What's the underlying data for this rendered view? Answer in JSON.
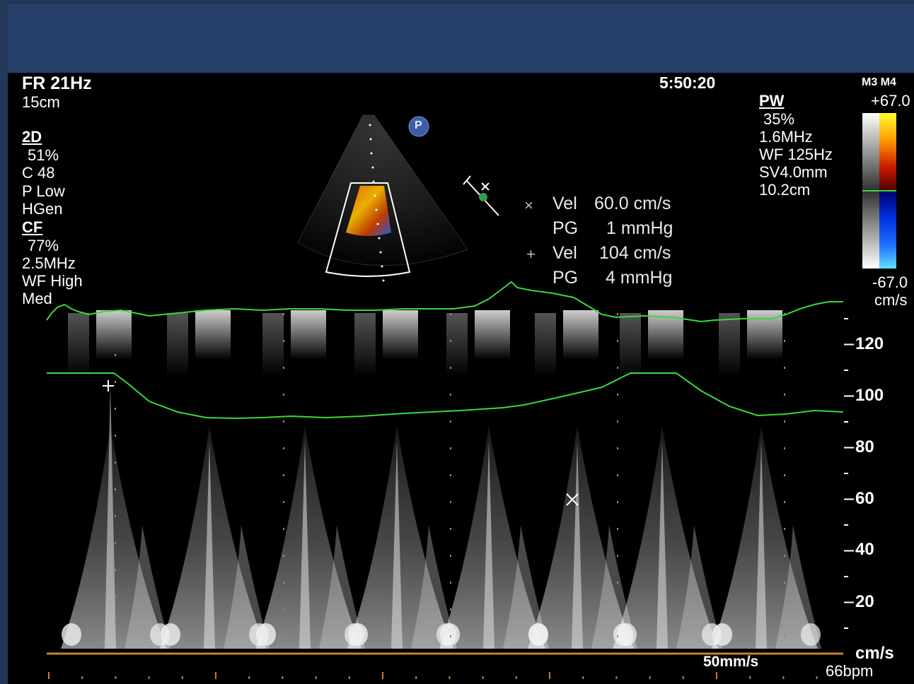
{
  "params_left": {
    "fr": "FR 21Hz",
    "depth": "15cm",
    "mode_2d": {
      "label": "2D",
      "gain": "51%",
      "compress": "C 48",
      "power": "P Low",
      "freq": "HGen"
    },
    "mode_cf": {
      "label": "CF",
      "gain": "77%",
      "freq": "2.5MHz",
      "wall_filter": "WF High",
      "level": "Med"
    }
  },
  "time": "5:50:20",
  "params_pw": {
    "label": "PW",
    "gain": "35%",
    "freq": "1.6MHz",
    "wall_filter": "WF 125Hz",
    "sample_volume": "SV4.0mm",
    "depth": "10.2cm"
  },
  "color_bar": {
    "probe": "M3 M4",
    "max": "+67.0",
    "min": "-67.0",
    "unit": "cm/s"
  },
  "probe_badge": "P",
  "measurements": [
    {
      "marker": "×",
      "vel_label": "Vel",
      "vel_value": "60.0 cm/s",
      "pg_label": "PG",
      "pg_value": "1 mmHg"
    },
    {
      "marker": "+",
      "vel_label": "Vel",
      "vel_value": "104 cm/s",
      "pg_label": "PG",
      "pg_value": "4 mmHg"
    }
  ],
  "velocity_scale": {
    "ticks": [
      "120",
      "100",
      "80",
      "60",
      "40",
      "20"
    ],
    "unit": "cm/s"
  },
  "sweep_speed": "50mm/s",
  "heart_rate": "66bpm",
  "colors": {
    "ecg": "#3bd83b",
    "baseline": "#c8822a",
    "grid_dot": "#c8822a",
    "frame": "#23385a"
  }
}
